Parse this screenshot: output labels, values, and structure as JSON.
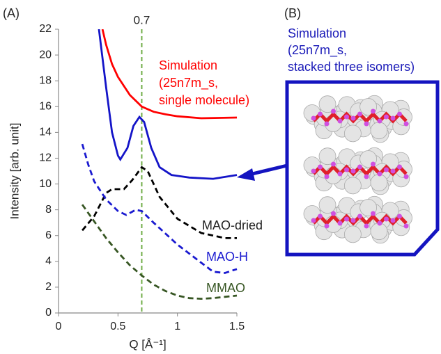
{
  "chart_data": {
    "type": "line",
    "panel_label": "(A)",
    "y_label": "Intensity [arb. unit]",
    "x_label": "Q [Å⁻¹]",
    "xlim": [
      0,
      1.5
    ],
    "xticks": [
      0,
      0.5,
      1,
      1.5
    ],
    "ylim": [
      0,
      22
    ],
    "yticks": [
      0,
      2,
      4,
      6,
      8,
      10,
      12,
      14,
      16,
      18,
      20,
      22
    ],
    "vline": {
      "x": 0.7,
      "color": "#70ad47"
    },
    "series": [
      {
        "name": [
          "Simulation",
          "(25n7m_s,",
          "single molecule)"
        ],
        "color": "#ff0000",
        "dashed": false,
        "x": [
          0.37,
          0.4,
          0.45,
          0.5,
          0.6,
          0.7,
          0.8,
          0.9,
          1.0,
          1.2,
          1.5
        ],
        "values": [
          22,
          20.8,
          19.3,
          18.3,
          16.9,
          16.0,
          15.6,
          15.4,
          15.25,
          15.1,
          15.15
        ]
      },
      {
        "name": null,
        "color": "#1414c8",
        "dashed": false,
        "x": [
          0.34,
          0.4,
          0.45,
          0.5,
          0.52,
          0.58,
          0.63,
          0.68,
          0.72,
          0.78,
          0.85,
          0.95,
          1.1,
          1.3,
          1.5
        ],
        "values": [
          22,
          17.5,
          14,
          12.2,
          11.9,
          12.8,
          14.5,
          15.2,
          14.8,
          12.8,
          11.3,
          10.7,
          10.5,
          10.4,
          10.7
        ]
      },
      {
        "name": "MAO-dried",
        "color": "#000000",
        "dashed": true,
        "x": [
          0.2,
          0.3,
          0.4,
          0.45,
          0.55,
          0.62,
          0.7,
          0.75,
          0.85,
          1.0,
          1.2,
          1.4,
          1.5
        ],
        "values": [
          6.4,
          7.5,
          9.3,
          9.6,
          9.6,
          10.3,
          11.3,
          11.0,
          9.0,
          7.3,
          6.2,
          5.8,
          5.8
        ]
      },
      {
        "name": "MAO-H",
        "color": "#1a1ad0",
        "dashed": true,
        "x": [
          0.2,
          0.25,
          0.3,
          0.4,
          0.5,
          0.57,
          0.65,
          0.7,
          0.8,
          1.0,
          1.2,
          1.3,
          1.4,
          1.5
        ],
        "values": [
          13.1,
          11.5,
          10.2,
          8.8,
          7.9,
          7.6,
          8.0,
          7.9,
          7.0,
          5.3,
          3.9,
          3.2,
          3.1,
          3.4
        ]
      },
      {
        "name": "MMAO",
        "color": "#375623",
        "dashed": true,
        "x": [
          0.2,
          0.3,
          0.4,
          0.5,
          0.6,
          0.7,
          0.8,
          0.9,
          1.0,
          1.1,
          1.2,
          1.3,
          1.4,
          1.5
        ],
        "values": [
          8.4,
          7.1,
          5.8,
          4.7,
          3.7,
          2.9,
          2.2,
          1.7,
          1.35,
          1.15,
          1.1,
          1.15,
          1.25,
          1.35
        ]
      }
    ]
  },
  "panel_b": {
    "label": "(B)",
    "title": [
      "Simulation",
      "(25n7m_s,",
      "stacked three isomers)"
    ]
  }
}
